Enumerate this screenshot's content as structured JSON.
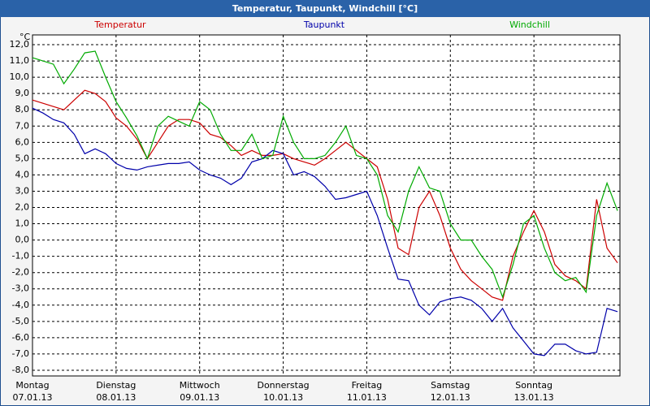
{
  "chart_data": {
    "type": "line",
    "title": "Temperatur, Taupunkt, Windchill [°C]",
    "y_unit": "°C",
    "x": [
      0,
      3,
      6,
      9,
      12,
      15,
      18,
      21,
      24,
      27,
      30,
      33,
      36,
      39,
      42,
      45,
      48,
      51,
      54,
      57,
      60,
      63,
      66,
      69,
      72,
      75,
      78,
      81,
      84,
      87,
      90,
      93,
      96,
      99,
      102,
      105,
      108,
      111,
      114,
      117,
      120,
      123,
      126,
      129,
      132,
      135,
      138,
      141,
      144,
      147,
      150,
      153,
      156,
      159,
      162,
      165,
      168
    ],
    "xlim": [
      0,
      168.7
    ],
    "xticks": [
      {
        "value": 0,
        "label": [
          "Montag",
          "07.01.13"
        ]
      },
      {
        "value": 24,
        "label": [
          "Dienstag",
          "08.01.13"
        ]
      },
      {
        "value": 48,
        "label": [
          "Mittwoch",
          "09.01.13"
        ]
      },
      {
        "value": 72,
        "label": [
          "Donnerstag",
          "10.01.13"
        ]
      },
      {
        "value": 96,
        "label": [
          "Freitag",
          "11.01.13"
        ]
      },
      {
        "value": 120,
        "label": [
          "Samstag",
          "12.01.13"
        ]
      },
      {
        "value": 144,
        "label": [
          "Sonntag",
          "13.01.13"
        ]
      }
    ],
    "ylim": [
      -8.35,
      12.6
    ],
    "yticks": [
      {
        "value": 12,
        "label": "12,0"
      },
      {
        "value": 11,
        "label": "11,0"
      },
      {
        "value": 10,
        "label": "10,0"
      },
      {
        "value": 9,
        "label": "9,0"
      },
      {
        "value": 8,
        "label": "8,0"
      },
      {
        "value": 7,
        "label": "7,0"
      },
      {
        "value": 6,
        "label": "6,0"
      },
      {
        "value": 5,
        "label": "5,0"
      },
      {
        "value": 4,
        "label": "4,0"
      },
      {
        "value": 3,
        "label": "3,0"
      },
      {
        "value": 2,
        "label": "2,0"
      },
      {
        "value": 1,
        "label": "1,0"
      },
      {
        "value": 0,
        "label": "0,0"
      },
      {
        "value": -1,
        "label": "-1,0"
      },
      {
        "value": -2,
        "label": "-2,0"
      },
      {
        "value": -3,
        "label": "-3,0"
      },
      {
        "value": -4,
        "label": "-4,0"
      },
      {
        "value": -5,
        "label": "-5,0"
      },
      {
        "value": -6,
        "label": "-6,0"
      },
      {
        "value": -7,
        "label": "-7,0"
      },
      {
        "value": -8,
        "label": "-8,0"
      }
    ],
    "grid": true,
    "series": [
      {
        "name": "Temperatur",
        "color": "#cc0000",
        "values": [
          8.6,
          8.4,
          8.2,
          8.0,
          8.6,
          9.2,
          9.0,
          8.5,
          7.5,
          7.0,
          6.2,
          5.0,
          6.0,
          7.0,
          7.4,
          7.4,
          7.2,
          6.5,
          6.3,
          5.8,
          5.2,
          5.5,
          5.2,
          5.2,
          5.3,
          5.0,
          4.8,
          4.6,
          5.0,
          5.5,
          6.0,
          5.5,
          5.0,
          4.5,
          2.5,
          -0.5,
          -0.9,
          2.0,
          3.0,
          1.5,
          -0.5,
          -1.8,
          -2.5,
          -3.0,
          -3.5,
          -3.7,
          -1.0,
          0.5,
          1.8,
          0.5,
          -1.5,
          -2.2,
          -2.5,
          -3.0,
          2.5,
          -0.5,
          -1.4
        ]
      },
      {
        "name": "Taupunkt",
        "color": "#0000aa",
        "values": [
          8.1,
          7.8,
          7.4,
          7.2,
          6.5,
          5.3,
          5.6,
          5.3,
          4.7,
          4.4,
          4.3,
          4.5,
          4.6,
          4.7,
          4.7,
          4.8,
          4.3,
          4.0,
          3.8,
          3.4,
          3.8,
          4.8,
          5.0,
          5.5,
          5.3,
          4.0,
          4.2,
          3.9,
          3.3,
          2.5,
          2.6,
          2.8,
          3.0,
          1.5,
          -0.5,
          -2.4,
          -2.5,
          -4.0,
          -4.6,
          -3.8,
          -3.6,
          -3.5,
          -3.7,
          -4.2,
          -5.0,
          -4.2,
          -5.4,
          -6.2,
          -7.0,
          -7.1,
          -6.4,
          -6.4,
          -6.8,
          -7.0,
          -6.9,
          -4.2,
          -4.4
        ]
      },
      {
        "name": "Windchill",
        "color": "#00aa00",
        "values": [
          11.2,
          11.0,
          10.8,
          9.6,
          10.5,
          11.5,
          11.6,
          10.0,
          8.5,
          7.5,
          6.4,
          5.0,
          7.0,
          7.6,
          7.3,
          7.0,
          8.5,
          8.0,
          6.5,
          5.5,
          5.5,
          6.5,
          5.0,
          5.2,
          7.6,
          6.0,
          5.0,
          5.0,
          5.2,
          6.0,
          7.0,
          5.2,
          5.0,
          4.0,
          1.5,
          0.5,
          3.0,
          4.5,
          3.2,
          3.0,
          1.0,
          0.0,
          0.0,
          -1.0,
          -1.8,
          -3.5,
          -1.5,
          1.0,
          1.5,
          -0.5,
          -2.0,
          -2.5,
          -2.3,
          -3.2,
          1.5,
          3.5,
          1.8
        ]
      }
    ]
  }
}
